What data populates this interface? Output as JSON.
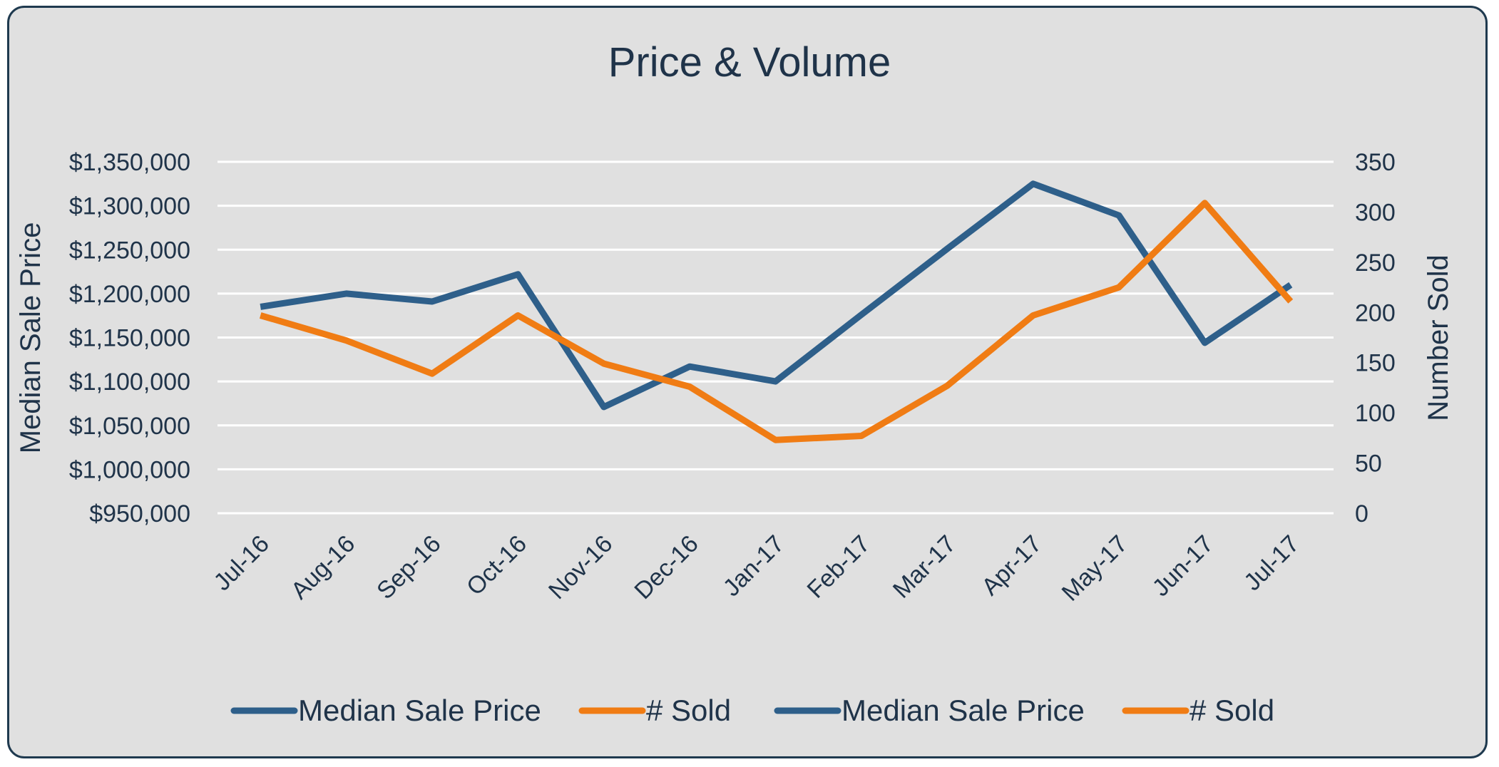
{
  "chart_data": {
    "type": "line",
    "title": "Price & Volume",
    "categories": [
      "Jul-16",
      "Aug-16",
      "Sep-16",
      "Oct-16",
      "Nov-16",
      "Dec-16",
      "Jan-17",
      "Feb-17",
      "Mar-17",
      "Apr-17",
      "May-17",
      "Jun-17",
      "Jul-17"
    ],
    "ylabel": "Median Sale Price",
    "y2label": "Number Sold",
    "ylim": [
      950000,
      1350000
    ],
    "y2lim": [
      0,
      350
    ],
    "yticks": [
      "$950,000",
      "$1,000,000",
      "$1,050,000",
      "$1,100,000",
      "$1,150,000",
      "$1,200,000",
      "$1,250,000",
      "$1,300,000",
      "$1,350,000"
    ],
    "y2ticks": [
      "0",
      "50",
      "100",
      "150",
      "200",
      "250",
      "300",
      "350"
    ],
    "grid": true,
    "legend_position": "bottom",
    "series": [
      {
        "name": "Median Sale Price",
        "axis": "left",
        "color": "#2e5f8a",
        "values": [
          1185000,
          1200000,
          1191000,
          1222000,
          1071000,
          1117000,
          1100000,
          1176000,
          1251000,
          1325000,
          1289000,
          1144000,
          1210000
        ]
      },
      {
        "name": "# Sold",
        "axis": "right",
        "color": "#f07c14",
        "values": [
          197,
          172,
          139,
          197,
          149,
          126,
          73,
          77,
          127,
          197,
          225,
          309,
          211
        ]
      }
    ],
    "legend": [
      {
        "label": "Median Sale Price",
        "color": "#2e5f8a"
      },
      {
        "label": "# Sold",
        "color": "#f07c14"
      },
      {
        "label": "Median Sale Price",
        "color": "#2e5f8a"
      },
      {
        "label": "# Sold",
        "color": "#f07c14"
      }
    ]
  }
}
